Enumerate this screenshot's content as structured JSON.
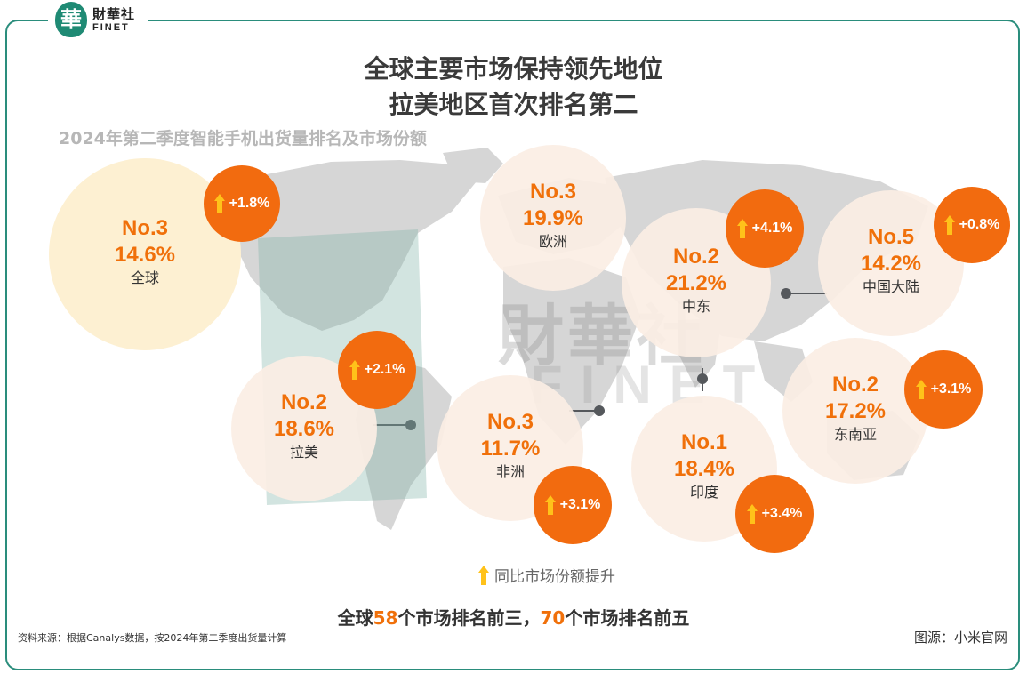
{
  "logo": {
    "seal_char": "華",
    "name_cn": "財華社",
    "name_en": "FINET"
  },
  "title_line1": "全球主要市场保持领先地位",
  "title_line2": "拉美地区首次排名第二",
  "subtitle": "2024年第二季度智能手机出货量排名及市场份额",
  "watermark": {
    "cn": "財華社",
    "en": "FINET"
  },
  "colors": {
    "accent": "#f0700a",
    "badge": "#f26b0f",
    "arrow": "#ffc21a",
    "bubble": "#fbeee4",
    "bubble_global": "#fdf0d2",
    "frame": "#2a8d7c",
    "map": "#d3d3d3"
  },
  "chart_data": {
    "type": "bubble-map",
    "title": "全球主要市场保持领先地位 拉美地区首次排名第二",
    "subtitle": "2024年第二季度智能手机出货量排名及市场份额",
    "regions": [
      {
        "region": "全球",
        "rank": "No.3",
        "share": "14.6%",
        "share_value": 14.6,
        "yoy_change": "+1.8%"
      },
      {
        "region": "欧洲",
        "rank": "No.3",
        "share": "19.9%",
        "share_value": 19.9
      },
      {
        "region": "中东",
        "rank": "No.2",
        "share": "21.2%",
        "share_value": 21.2,
        "yoy_change": "+4.1%"
      },
      {
        "region": "中国大陆",
        "rank": "No.5",
        "share": "14.2%",
        "share_value": 14.2,
        "yoy_change": "+0.8%"
      },
      {
        "region": "拉美",
        "rank": "No.2",
        "share": "18.6%",
        "share_value": 18.6,
        "yoy_change": "+2.1%"
      },
      {
        "region": "非洲",
        "rank": "No.3",
        "share": "11.7%",
        "share_value": 11.7,
        "yoy_change": "+3.1%"
      },
      {
        "region": "印度",
        "rank": "No.1",
        "share": "18.4%",
        "share_value": 18.4,
        "yoy_change": "+3.4%"
      },
      {
        "region": "东南亚",
        "rank": "No.2",
        "share": "17.2%",
        "share_value": 17.2,
        "yoy_change": "+3.1%"
      }
    ],
    "legend": "同比市场份额提升"
  },
  "summary": {
    "prefix": "全球",
    "n1": "58",
    "mid": "个市场排名前三，",
    "n2": "70",
    "suffix": "个市场排名前五"
  },
  "source": "资料来源：根据Canalys数据，按2024年第二季度出货量计算",
  "credit": "图源：小米官网"
}
